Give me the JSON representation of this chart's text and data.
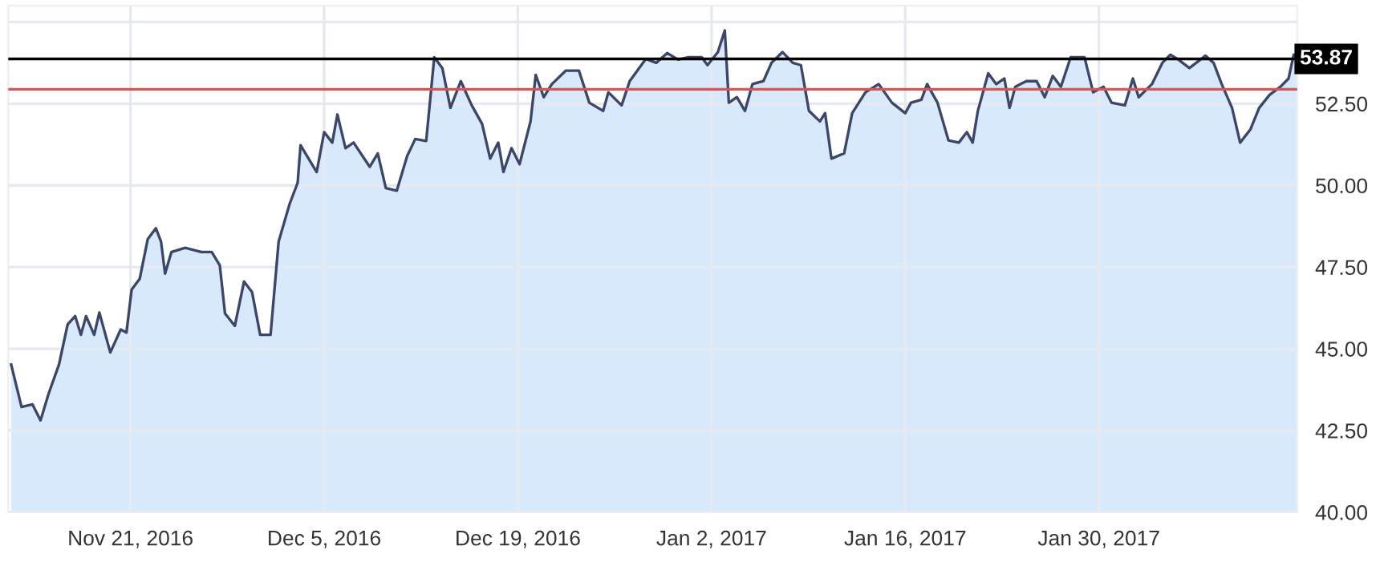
{
  "chart_data": {
    "type": "area",
    "x": [
      "2016-11-12T09:00",
      "2016-11-13T03:00",
      "2016-11-13T22:00",
      "2016-11-14T12:00",
      "2016-11-15T02:00",
      "2016-11-15T20:00",
      "2016-11-16T11:00",
      "2016-11-17T00:00",
      "2016-11-17T10:00",
      "2016-11-17T19:00",
      "2016-11-18T09:00",
      "2016-11-18T18:00",
      "2016-11-19T13:00",
      "2016-11-20T07:00",
      "2016-11-20T17:00",
      "2016-11-21T02:00",
      "2016-11-21T16:00",
      "2016-11-22T06:00",
      "2016-11-22T20:00",
      "2016-11-23T05:00",
      "2016-11-23T12:00",
      "2016-11-23T23:00",
      "2016-11-24T23:00",
      "2016-11-26T03:00",
      "2016-11-26T21:00",
      "2016-11-27T11:00",
      "2016-11-27T20:00",
      "2016-11-28T13:00",
      "2016-11-29T05:00",
      "2016-11-29T19:00",
      "2016-11-30T09:00",
      "2016-12-01T03:00",
      "2016-12-01T17:00",
      "2016-12-02T12:00",
      "2016-12-03T02:00",
      "2016-12-03T07:00",
      "2016-12-03T21:00",
      "2016-12-04T11:00",
      "2016-12-05T00:00",
      "2016-12-05T14:00",
      "2016-12-05T23:00",
      "2016-12-06T13:00",
      "2016-12-07T03:00",
      "2016-12-08T07:00",
      "2016-12-08T21:00",
      "2016-12-09T11:00",
      "2016-12-10T06:00",
      "2016-12-11T00:00",
      "2016-12-11T14:00",
      "2016-12-12T09:00",
      "2016-12-12T23:00",
      "2016-12-13T13:00",
      "2016-12-14T03:00",
      "2016-12-14T21:00",
      "2016-12-15T16:00",
      "2016-12-16T10:00",
      "2016-12-17T00:00",
      "2016-12-17T14:00",
      "2016-12-17T23:00",
      "2016-12-18T13:00",
      "2016-12-19T03:00",
      "2016-12-19T22:00",
      "2016-12-20T07:00",
      "2016-12-20T21:00",
      "2016-12-21T11:00",
      "2016-12-22T11:00",
      "2016-12-23T10:00",
      "2016-12-24T04:00",
      "2016-12-25T04:00",
      "2016-12-25T13:00",
      "2016-12-26T12:00",
      "2016-12-27T02:00",
      "2016-12-28T06:00",
      "2016-12-29T00:00",
      "2016-12-29T19:00",
      "2016-12-30T14:00",
      "2016-12-31T08:00",
      "2017-01-01T07:00",
      "2017-01-01T17:00",
      "2017-01-02T11:00",
      "2017-01-02T23:00",
      "2017-01-03T06:00",
      "2017-01-03T20:00",
      "2017-01-04T10:00",
      "2017-01-04T23:00",
      "2017-01-05T18:00",
      "2017-01-06T08:00",
      "2017-01-07T03:00",
      "2017-01-07T21:00",
      "2017-01-08T11:00",
      "2017-01-09T01:00",
      "2017-01-09T20:00",
      "2017-01-10T05:00",
      "2017-01-10T16:00",
      "2017-01-11T14:00",
      "2017-01-12T04:00",
      "2017-01-13T03:00",
      "2017-01-14T02:00",
      "2017-01-15T01:00",
      "2017-01-16T00:00",
      "2017-01-16T10:00",
      "2017-01-17T04:00",
      "2017-01-17T14:00",
      "2017-01-18T08:00",
      "2017-01-19T03:00",
      "2017-01-19T21:00",
      "2017-01-20T11:00",
      "2017-01-20T21:00",
      "2017-01-21T06:00",
      "2017-01-22T00:00",
      "2017-01-22T14:00",
      "2017-01-23T04:00",
      "2017-01-23T13:00",
      "2017-01-23T23:00",
      "2017-01-24T18:00",
      "2017-01-25T12:00",
      "2017-01-26T02:00",
      "2017-01-26T16:00",
      "2017-01-27T06:00",
      "2017-01-27T23:00",
      "2017-01-28T23:00",
      "2017-01-29T14:00",
      "2017-01-30T08:00",
      "2017-01-30T22:00",
      "2017-01-31T21:00",
      "2017-02-01T11:00",
      "2017-02-01T21:00",
      "2017-02-02T20:00",
      "2017-02-03T14:00",
      "2017-02-04T04:00",
      "2017-02-04T18:00",
      "2017-02-05T13:00",
      "2017-02-06T17:00",
      "2017-02-07T07:00",
      "2017-02-07T21:00",
      "2017-02-08T15:00",
      "2017-02-09T05:00",
      "2017-02-09T23:00",
      "2017-02-10T14:00",
      "2017-02-11T08:00",
      "2017-02-12T03:00",
      "2017-02-12T17:00",
      "2017-02-13T02:00",
      "2017-02-13T08:00"
    ],
    "series": [
      {
        "color": "#3b4668",
        "values": [
          44.52,
          43.22,
          43.3,
          42.81,
          43.63,
          44.52,
          45.75,
          46.0,
          45.43,
          46.0,
          45.43,
          46.11,
          44.89,
          45.59,
          45.5,
          46.81,
          47.14,
          48.36,
          48.69,
          48.28,
          47.3,
          47.96,
          48.09,
          47.96,
          47.96,
          47.55,
          46.08,
          45.7,
          47.06,
          46.73,
          45.43,
          45.43,
          48.28,
          49.43,
          50.08,
          51.23,
          50.82,
          50.41,
          51.63,
          51.31,
          52.17,
          51.14,
          51.31,
          50.57,
          50.98,
          49.92,
          49.84,
          50.9,
          51.42,
          51.36,
          53.92,
          53.59,
          52.37,
          53.19,
          52.45,
          51.88,
          50.82,
          51.31,
          50.41,
          51.14,
          50.65,
          51.96,
          53.38,
          52.7,
          53.1,
          53.51,
          53.51,
          52.53,
          52.28,
          52.85,
          52.45,
          53.19,
          53.87,
          53.75,
          54.05,
          53.85,
          53.92,
          53.92,
          53.68,
          54.08,
          54.74,
          52.53,
          52.7,
          52.28,
          53.1,
          53.19,
          53.75,
          54.08,
          53.75,
          53.68,
          52.28,
          51.96,
          52.21,
          50.82,
          50.98,
          52.21,
          52.85,
          53.1,
          52.53,
          52.21,
          52.53,
          52.62,
          53.1,
          52.53,
          51.38,
          51.31,
          51.63,
          51.31,
          52.28,
          53.43,
          53.1,
          53.27,
          52.37,
          53.02,
          53.19,
          53.19,
          52.7,
          53.35,
          53.02,
          53.92,
          53.92,
          52.85,
          53.02,
          52.53,
          52.45,
          53.27,
          52.7,
          53.1,
          53.75,
          54.0,
          53.85,
          53.59,
          53.97,
          53.75,
          53.1,
          52.37,
          51.31,
          51.72,
          52.37,
          52.77,
          53.02,
          53.27,
          54.0,
          53.87
        ]
      }
    ],
    "xlim": [
      "2016-11-12T04:00",
      "2017-02-13T08:00"
    ],
    "xticks": [
      {
        "value": "2016-11-21",
        "label": "Nov 21, 2016"
      },
      {
        "value": "2016-12-05",
        "label": "Dec 5, 2016"
      },
      {
        "value": "2016-12-19",
        "label": "Dec 19, 2016"
      },
      {
        "value": "2017-01-02",
        "label": "Jan 2, 2017"
      },
      {
        "value": "2017-01-16",
        "label": "Jan 16, 2017"
      },
      {
        "value": "2017-01-30",
        "label": "Jan 30, 2017"
      }
    ],
    "ylim": [
      40,
      55.5
    ],
    "yticks": [
      {
        "value": 40,
        "label": "40.00"
      },
      {
        "value": 42.5,
        "label": "42.50"
      },
      {
        "value": 45,
        "label": "45.00"
      },
      {
        "value": 47.5,
        "label": "47.50"
      },
      {
        "value": 50,
        "label": "50.00"
      },
      {
        "value": 52.5,
        "label": "52.50"
      },
      {
        "value": 55,
        "label": null
      }
    ],
    "ref_lines": [
      {
        "axis": "y",
        "value": 53.87,
        "label": "53.87",
        "color": "#000000"
      },
      {
        "axis": "y",
        "value": 52.94,
        "color": "#d9534f"
      }
    ],
    "grid": true
  }
}
